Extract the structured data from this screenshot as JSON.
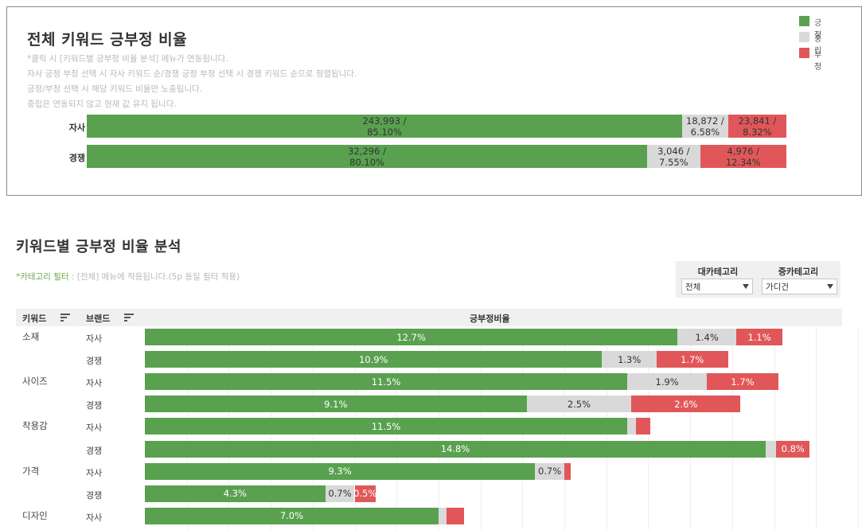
{
  "colors": {
    "positive": "#59a14f",
    "neutral": "#d9d9d9",
    "negative": "#e15759"
  },
  "top": {
    "title": "전체 키워드 긍부정 비율",
    "notes": [
      "*클릭 시 [키워드별 긍부정 비율 분석] 메뉴가 연동됩니다.",
      "자사 긍정 부정 선택 시 자사 키워드 순/경쟁 긍정 부정 선택 시 경쟁 키워드 순으로 정렬됩니다.",
      "긍정/부정 선택 시 해당 키워드 비율만 노출됩니다.",
      "중립은 연동되지 않고 현재 값 유지 됩니다."
    ],
    "legend": [
      "긍정",
      "중립",
      "부정"
    ]
  },
  "bottom": {
    "title": "키워드별 긍부정 비율 분석",
    "filter_note_highlight": "*카테고리 필터",
    "filter_note_rest": " : [전체] 메뉴에 적용됩니다.(5p 동일 필터 적용)",
    "filters": [
      {
        "label": "대카테고리",
        "value": "전체"
      },
      {
        "label": "중카테고리",
        "value": "가디건"
      }
    ],
    "headers": {
      "keyword": "키워드",
      "brand": "브랜드",
      "ratio": "긍부정비율"
    }
  },
  "chart_data": [
    {
      "type": "bar",
      "orientation": "horizontal",
      "stacked": true,
      "categories": [
        "자사",
        "경쟁"
      ],
      "series": [
        {
          "name": "긍정",
          "counts": [
            243993,
            32296
          ],
          "labels": [
            "243,993 /\n85.10%",
            "32,296 /\n80.10%"
          ],
          "values": [
            85.1,
            80.1
          ]
        },
        {
          "name": "중립",
          "counts": [
            18872,
            3046
          ],
          "labels": [
            "18,872 /\n6.58%",
            "3,046 /\n7.55%"
          ],
          "values": [
            6.58,
            7.55
          ]
        },
        {
          "name": "부정",
          "counts": [
            23841,
            4976
          ],
          "labels": [
            "23,841 /\n8.32%",
            "4,976 /\n12.34%"
          ],
          "values": [
            8.32,
            12.34
          ]
        }
      ]
    },
    {
      "type": "bar",
      "orientation": "horizontal",
      "stacked": true,
      "xlim": [
        0,
        18
      ],
      "rows": [
        {
          "keyword": "소재",
          "brand": "자사",
          "pos": 12.7,
          "neu": 1.4,
          "neg": 1.1,
          "pos_label": "12.7%",
          "neu_label": "1.4%",
          "neg_label": "1.1%"
        },
        {
          "keyword": "",
          "brand": "경쟁",
          "pos": 10.9,
          "neu": 1.3,
          "neg": 1.7,
          "pos_label": "10.9%",
          "neu_label": "1.3%",
          "neg_label": "1.7%"
        },
        {
          "keyword": "사이즈",
          "brand": "자사",
          "pos": 11.5,
          "neu": 1.9,
          "neg": 1.7,
          "pos_label": "11.5%",
          "neu_label": "1.9%",
          "neg_label": "1.7%"
        },
        {
          "keyword": "",
          "brand": "경쟁",
          "pos": 9.1,
          "neu": 2.5,
          "neg": 2.6,
          "pos_label": "9.1%",
          "neu_label": "2.5%",
          "neg_label": "2.6%"
        },
        {
          "keyword": "착용감",
          "brand": "자사",
          "pos": 11.5,
          "neu": 0.2,
          "neg": 0.35,
          "pos_label": "11.5%",
          "neu_label": "",
          "neg_label": ""
        },
        {
          "keyword": "",
          "brand": "경쟁",
          "pos": 14.8,
          "neu": 0.25,
          "neg": 0.8,
          "pos_label": "14.8%",
          "neu_label": "",
          "neg_label": "0.8%"
        },
        {
          "keyword": "가격",
          "brand": "자사",
          "pos": 9.3,
          "neu": 0.7,
          "neg": 0.15,
          "pos_label": "9.3%",
          "neu_label": "0.7%",
          "neg_label": ""
        },
        {
          "keyword": "",
          "brand": "경쟁",
          "pos": 4.3,
          "neu": 0.7,
          "neg": 0.5,
          "pos_label": "4.3%",
          "neu_label": "0.7%",
          "neg_label": "0.5%"
        },
        {
          "keyword": "디자인",
          "brand": "자사",
          "pos": 7.0,
          "neu": 0.2,
          "neg": 0.4,
          "pos_label": "7.0%",
          "neu_label": "",
          "neg_label": ""
        }
      ]
    }
  ]
}
